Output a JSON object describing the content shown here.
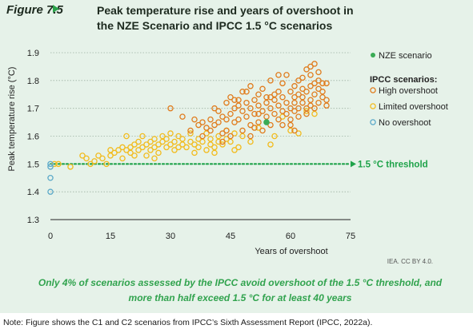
{
  "figure": {
    "label": "Figure 7.5",
    "title": "Peak temperature rise and years of overshoot in the NZE Scenario and IPCC 1.5 °C scenarios",
    "source": "IEA. CC BY 4.0.",
    "takeaway": "Only 4% of scenarios assessed by the IPCC avoid overshoot of the 1.5 °C threshold, and more than half exceed 1.5 °C for at least 40 years",
    "note": "Note: Figure shows the C1 and C2 scenarios from IPCC’s Sixth Assessment Report (IPCC, 2022a)."
  },
  "colors": {
    "panel_bg": "#e6f2e9",
    "accent_green": "#2aa24a",
    "high": "#e07b1c",
    "limited": "#f2bb1c",
    "none": "#5aa8c8",
    "nze": "#3aab55",
    "threshold": "#1fa34a"
  },
  "chart_data": {
    "type": "scatter",
    "xlabel": "Years of overshoot",
    "ylabel": "Peak temperature rise (°C)",
    "xlim": [
      0,
      75
    ],
    "ylim": [
      1.3,
      1.9
    ],
    "x_ticks": [
      0,
      15,
      30,
      45,
      60,
      75
    ],
    "y_ticks": [
      1.3,
      1.4,
      1.5,
      1.6,
      1.7,
      1.8,
      1.9
    ],
    "legend_position": "top-right",
    "legend_title": "IPCC scenarios:",
    "threshold": {
      "value": 1.5,
      "label": "1.5 °C threshold"
    },
    "series": [
      {
        "name": "NZE scenario",
        "marker": "filled",
        "points": [
          [
            54,
            1.65
          ]
        ]
      },
      {
        "name": "High overshoot",
        "marker": "open",
        "points": [
          [
            30,
            1.7
          ],
          [
            33,
            1.67
          ],
          [
            35,
            1.62
          ],
          [
            37,
            1.64
          ],
          [
            38,
            1.6
          ],
          [
            39,
            1.63
          ],
          [
            40,
            1.62
          ],
          [
            40,
            1.66
          ],
          [
            41,
            1.64
          ],
          [
            42,
            1.69
          ],
          [
            42,
            1.65
          ],
          [
            43,
            1.61
          ],
          [
            43,
            1.67
          ],
          [
            44,
            1.72
          ],
          [
            44,
            1.62
          ],
          [
            45,
            1.68
          ],
          [
            45,
            1.74
          ],
          [
            46,
            1.65
          ],
          [
            46,
            1.7
          ],
          [
            47,
            1.71
          ],
          [
            47,
            1.66
          ],
          [
            47,
            1.73
          ],
          [
            48,
            1.62
          ],
          [
            48,
            1.69
          ],
          [
            48,
            1.76
          ],
          [
            49,
            1.72
          ],
          [
            49,
            1.67
          ],
          [
            50,
            1.7
          ],
          [
            50,
            1.64
          ],
          [
            50,
            1.78
          ],
          [
            51,
            1.73
          ],
          [
            51,
            1.68
          ],
          [
            52,
            1.71
          ],
          [
            52,
            1.75
          ],
          [
            52,
            1.65
          ],
          [
            53,
            1.62
          ],
          [
            53,
            1.69
          ],
          [
            53,
            1.77
          ],
          [
            54,
            1.74
          ],
          [
            54,
            1.67
          ],
          [
            54,
            1.72
          ],
          [
            55,
            1.8
          ],
          [
            55,
            1.7
          ],
          [
            55,
            1.64
          ],
          [
            56,
            1.75
          ],
          [
            56,
            1.68
          ],
          [
            56,
            1.73
          ],
          [
            57,
            1.66
          ],
          [
            57,
            1.71
          ],
          [
            57,
            1.76
          ],
          [
            58,
            1.79
          ],
          [
            58,
            1.69
          ],
          [
            58,
            1.74
          ],
          [
            59,
            1.72
          ],
          [
            59,
            1.68
          ],
          [
            59,
            1.82
          ],
          [
            60,
            1.7
          ],
          [
            60,
            1.76
          ],
          [
            60,
            1.66
          ],
          [
            60,
            1.64
          ],
          [
            61,
            1.74
          ],
          [
            61,
            1.78
          ],
          [
            61,
            1.72
          ],
          [
            61,
            1.69
          ],
          [
            62,
            1.8
          ],
          [
            62,
            1.75
          ],
          [
            62,
            1.67
          ],
          [
            63,
            1.72
          ],
          [
            63,
            1.77
          ],
          [
            63,
            1.81
          ],
          [
            64,
            1.7
          ],
          [
            64,
            1.76
          ],
          [
            64,
            1.84
          ],
          [
            64,
            1.68
          ],
          [
            65,
            1.73
          ],
          [
            65,
            1.78
          ],
          [
            65,
            1.82
          ],
          [
            65,
            1.71
          ],
          [
            66,
            1.75
          ],
          [
            66,
            1.79
          ],
          [
            66,
            1.86
          ],
          [
            67,
            1.72
          ],
          [
            67,
            1.77
          ],
          [
            67,
            1.8
          ],
          [
            68,
            1.74
          ],
          [
            68,
            1.79
          ],
          [
            68,
            1.76
          ],
          [
            69,
            1.79
          ],
          [
            69,
            1.73
          ],
          [
            69,
            1.71
          ],
          [
            36,
            1.66
          ],
          [
            41,
            1.7
          ],
          [
            44,
            1.66
          ],
          [
            46,
            1.73
          ],
          [
            49,
            1.76
          ],
          [
            51,
            1.63
          ],
          [
            55,
            1.74
          ],
          [
            57,
            1.82
          ],
          [
            62,
            1.7
          ],
          [
            66,
            1.7
          ],
          [
            52,
            1.68
          ],
          [
            58,
            1.64
          ],
          [
            61,
            1.62
          ],
          [
            63,
            1.74
          ],
          [
            65,
            1.85
          ],
          [
            67,
            1.83
          ],
          [
            50,
            1.6
          ],
          [
            45,
            1.6
          ],
          [
            38,
            1.65
          ],
          [
            43,
            1.58
          ]
        ]
      },
      {
        "name": "Limited overshoot",
        "marker": "open",
        "points": [
          [
            1,
            1.5
          ],
          [
            2,
            1.5
          ],
          [
            5,
            1.49
          ],
          [
            8,
            1.53
          ],
          [
            9,
            1.52
          ],
          [
            10,
            1.5
          ],
          [
            11,
            1.51
          ],
          [
            12,
            1.53
          ],
          [
            13,
            1.52
          ],
          [
            14,
            1.5
          ],
          [
            15,
            1.53
          ],
          [
            15,
            1.55
          ],
          [
            16,
            1.54
          ],
          [
            17,
            1.55
          ],
          [
            18,
            1.52
          ],
          [
            19,
            1.55
          ],
          [
            19,
            1.6
          ],
          [
            20,
            1.54
          ],
          [
            20,
            1.56
          ],
          [
            21,
            1.57
          ],
          [
            22,
            1.55
          ],
          [
            22,
            1.58
          ],
          [
            23,
            1.56
          ],
          [
            24,
            1.57
          ],
          [
            24,
            1.53
          ],
          [
            25,
            1.58
          ],
          [
            25,
            1.55
          ],
          [
            26,
            1.56
          ],
          [
            26,
            1.59
          ],
          [
            27,
            1.57
          ],
          [
            27,
            1.54
          ],
          [
            28,
            1.58
          ],
          [
            28,
            1.6
          ],
          [
            29,
            1.56
          ],
          [
            29,
            1.59
          ],
          [
            30,
            1.57
          ],
          [
            30,
            1.61
          ],
          [
            31,
            1.58
          ],
          [
            31,
            1.55
          ],
          [
            32,
            1.6
          ],
          [
            33,
            1.57
          ],
          [
            33,
            1.59
          ],
          [
            34,
            1.56
          ],
          [
            35,
            1.58
          ],
          [
            35,
            1.61
          ],
          [
            36,
            1.57
          ],
          [
            37,
            1.59
          ],
          [
            37,
            1.56
          ],
          [
            38,
            1.58
          ],
          [
            39,
            1.55
          ],
          [
            39,
            1.61
          ],
          [
            40,
            1.57
          ],
          [
            40,
            1.59
          ],
          [
            41,
            1.56
          ],
          [
            42,
            1.58
          ],
          [
            42,
            1.6
          ],
          [
            43,
            1.57
          ],
          [
            44,
            1.59
          ],
          [
            44,
            1.62
          ],
          [
            45,
            1.58
          ],
          [
            46,
            1.61
          ],
          [
            47,
            1.56
          ],
          [
            48,
            1.6
          ],
          [
            50,
            1.58
          ],
          [
            52,
            1.63
          ],
          [
            55,
            1.57
          ],
          [
            56,
            1.6
          ],
          [
            58,
            1.67
          ],
          [
            60,
            1.62
          ],
          [
            62,
            1.61
          ],
          [
            64,
            1.69
          ],
          [
            66,
            1.68
          ],
          [
            21,
            1.53
          ],
          [
            26,
            1.52
          ],
          [
            18,
            1.56
          ],
          [
            23,
            1.6
          ],
          [
            41,
            1.54
          ],
          [
            46,
            1.55
          ],
          [
            32,
            1.56
          ],
          [
            36,
            1.54
          ]
        ]
      },
      {
        "name": "No overshoot",
        "marker": "open",
        "points": [
          [
            0,
            1.5
          ],
          [
            0,
            1.49
          ],
          [
            0,
            1.45
          ],
          [
            0,
            1.4
          ]
        ]
      }
    ]
  }
}
